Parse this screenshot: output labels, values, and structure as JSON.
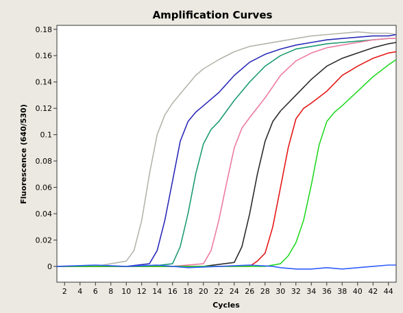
{
  "chart_data": {
    "type": "line",
    "title": "Amplification Curves",
    "xlabel": "Cycles",
    "ylabel": "Fluorescence (640/530)",
    "xlim": [
      1,
      45
    ],
    "ylim": [
      -0.012,
      0.183
    ],
    "xticks": [
      2,
      4,
      6,
      8,
      10,
      12,
      14,
      16,
      18,
      20,
      22,
      24,
      26,
      28,
      30,
      32,
      34,
      36,
      38,
      40,
      42,
      44
    ],
    "yticks": [
      0,
      0.02,
      0.04,
      0.06,
      0.08,
      0.1,
      0.12,
      0.14,
      0.16,
      0.18
    ],
    "ytick_labels": [
      "0",
      "0.02",
      "0.04",
      "0.06",
      "0.08",
      "0.1",
      "0.12",
      "0.14",
      "0.16",
      "0.18"
    ],
    "grid": false,
    "legend": "none",
    "series": [
      {
        "color": "#b4b4aa",
        "x": [
          1,
          6,
          10,
          11,
          12,
          13,
          14,
          15,
          16,
          17,
          18,
          19,
          20,
          22,
          24,
          26,
          28,
          30,
          32,
          34,
          36,
          38,
          40,
          42,
          44,
          45
        ],
        "y": [
          0,
          0,
          0.004,
          0.012,
          0.035,
          0.07,
          0.1,
          0.115,
          0.124,
          0.131,
          0.138,
          0.145,
          0.15,
          0.157,
          0.163,
          0.167,
          0.169,
          0.171,
          0.173,
          0.175,
          0.176,
          0.177,
          0.178,
          0.177,
          0.177,
          0.176
        ]
      },
      {
        "color": "#2a2ab8",
        "x": [
          1,
          10,
          13,
          14,
          15,
          16,
          17,
          18,
          19,
          20,
          22,
          24,
          26,
          28,
          30,
          32,
          34,
          36,
          38,
          40,
          42,
          44,
          45
        ],
        "y": [
          0,
          0,
          0.002,
          0.012,
          0.035,
          0.065,
          0.095,
          0.11,
          0.117,
          0.122,
          0.132,
          0.145,
          0.155,
          0.161,
          0.165,
          0.168,
          0.17,
          0.172,
          0.173,
          0.174,
          0.175,
          0.175,
          0.176
        ]
      },
      {
        "color": "#1c9a74",
        "x": [
          1,
          13,
          16,
          17,
          18,
          19,
          20,
          21,
          22,
          24,
          26,
          28,
          30,
          32,
          34,
          36,
          38,
          40,
          42,
          44,
          45
        ],
        "y": [
          0,
          0,
          0.002,
          0.015,
          0.04,
          0.07,
          0.093,
          0.104,
          0.11,
          0.126,
          0.14,
          0.152,
          0.16,
          0.165,
          0.167,
          0.169,
          0.17,
          0.171,
          0.172,
          0.173,
          0.173
        ]
      },
      {
        "color": "#ec7a9e",
        "x": [
          1,
          16,
          20,
          21,
          22,
          23,
          24,
          25,
          26,
          28,
          30,
          32,
          34,
          36,
          38,
          40,
          42,
          44,
          45
        ],
        "y": [
          0,
          0,
          0.002,
          0.012,
          0.035,
          0.063,
          0.09,
          0.105,
          0.113,
          0.128,
          0.145,
          0.156,
          0.162,
          0.166,
          0.168,
          0.17,
          0.172,
          0.173,
          0.173
        ]
      },
      {
        "color": "#2a2a2a",
        "x": [
          1,
          20,
          24,
          25,
          26,
          27,
          28,
          29,
          30,
          32,
          34,
          36,
          38,
          40,
          42,
          44,
          45
        ],
        "y": [
          0,
          0,
          0.003,
          0.015,
          0.04,
          0.07,
          0.095,
          0.11,
          0.118,
          0.13,
          0.142,
          0.152,
          0.158,
          0.162,
          0.166,
          0.169,
          0.17
        ]
      },
      {
        "color": "#e41616",
        "x": [
          1,
          22,
          26,
          27,
          28,
          29,
          30,
          31,
          32,
          33,
          34,
          36,
          38,
          40,
          42,
          44,
          45
        ],
        "y": [
          0,
          0,
          0,
          0.004,
          0.01,
          0.03,
          0.06,
          0.09,
          0.112,
          0.12,
          0.124,
          0.133,
          0.145,
          0.152,
          0.158,
          0.162,
          0.163
        ]
      },
      {
        "color": "#22d822",
        "x": [
          1,
          28,
          30,
          31,
          32,
          33,
          34,
          35,
          36,
          37,
          38,
          40,
          42,
          44,
          45
        ],
        "y": [
          0,
          0,
          0.002,
          0.008,
          0.018,
          0.035,
          0.062,
          0.092,
          0.11,
          0.117,
          0.122,
          0.133,
          0.144,
          0.153,
          0.157
        ]
      },
      {
        "color": "#2e5cff",
        "x": [
          1,
          6,
          10,
          14,
          18,
          22,
          26,
          29,
          30,
          32,
          34,
          36,
          38,
          40,
          42,
          44,
          45
        ],
        "y": [
          0,
          0.001,
          0,
          0.001,
          -0.001,
          0,
          0.001,
          0,
          -0.001,
          -0.002,
          -0.002,
          -0.001,
          -0.002,
          -0.001,
          0,
          0.001,
          0.001
        ]
      }
    ]
  }
}
